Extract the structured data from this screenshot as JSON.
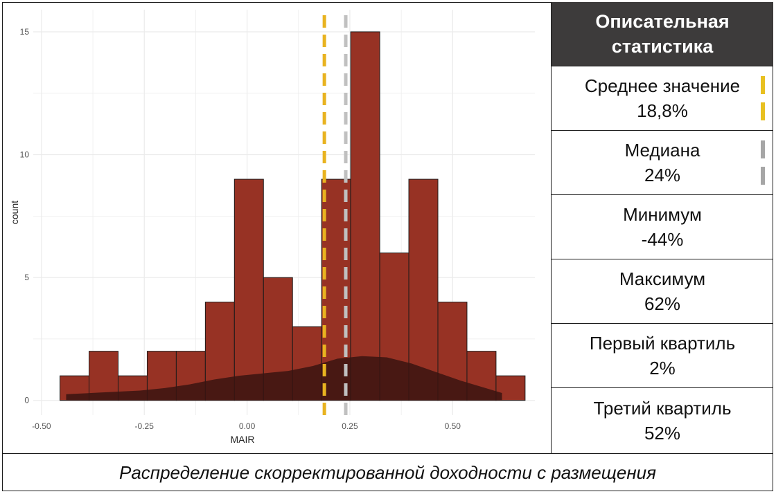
{
  "chart_data": {
    "type": "bar",
    "subtype": "histogram-with-density",
    "xlabel": "MAIR",
    "ylabel": "count",
    "xlim": [
      -0.52,
      0.7
    ],
    "ylim": [
      -0.6,
      15.9
    ],
    "x_ticks": [
      -0.5,
      -0.25,
      0.0,
      0.25,
      0.5
    ],
    "x_tick_labels": [
      "-0.50",
      "-0.25",
      "0.00",
      "0.25",
      "0.50"
    ],
    "y_ticks": [
      0,
      5,
      10,
      15
    ],
    "y_tick_labels": [
      "0",
      "5",
      "10",
      "15"
    ],
    "grid": true,
    "bin_width": 0.0707,
    "bin_start": -0.455,
    "values": [
      1,
      2,
      1,
      2,
      2,
      4,
      9,
      5,
      3,
      9,
      15,
      6,
      9,
      4,
      2,
      1
    ],
    "density": {
      "x": [
        -0.44,
        -0.38,
        -0.32,
        -0.26,
        -0.2,
        -0.14,
        -0.08,
        -0.02,
        0.04,
        0.1,
        0.16,
        0.22,
        0.28,
        0.34,
        0.4,
        0.46,
        0.52,
        0.58,
        0.62
      ],
      "y": [
        0.25,
        0.3,
        0.35,
        0.4,
        0.5,
        0.65,
        0.85,
        1.0,
        1.1,
        1.2,
        1.4,
        1.7,
        1.8,
        1.75,
        1.5,
        1.15,
        0.8,
        0.5,
        0.3
      ]
    },
    "reference_lines": [
      {
        "name": "Среднее значение",
        "x": 0.188,
        "color": "#e8b320"
      },
      {
        "name": "Медиана",
        "x": 0.24,
        "color": "#c0c0c0"
      }
    ],
    "colors": {
      "bars": "#973224",
      "bar_border": "#1a1a1a",
      "density_fill": "#3a1410",
      "grid": "#ebebeb"
    }
  },
  "stats": {
    "title": "Описательная статистика",
    "rows": [
      {
        "label": "Среднее значение",
        "value": "18,8%",
        "marker_color": "#e8c020"
      },
      {
        "label": "Медиана",
        "value": "24%",
        "marker_color": "#a6a6a6"
      },
      {
        "label": "Минимум",
        "value": "-44%",
        "marker_color": ""
      },
      {
        "label": "Максимум",
        "value": "62%",
        "marker_color": ""
      },
      {
        "label": "Первый квартиль",
        "value": "2%",
        "marker_color": ""
      },
      {
        "label": "Третий квартиль",
        "value": "52%",
        "marker_color": ""
      }
    ]
  },
  "caption": "Распределение скорректированной доходности с размещения"
}
